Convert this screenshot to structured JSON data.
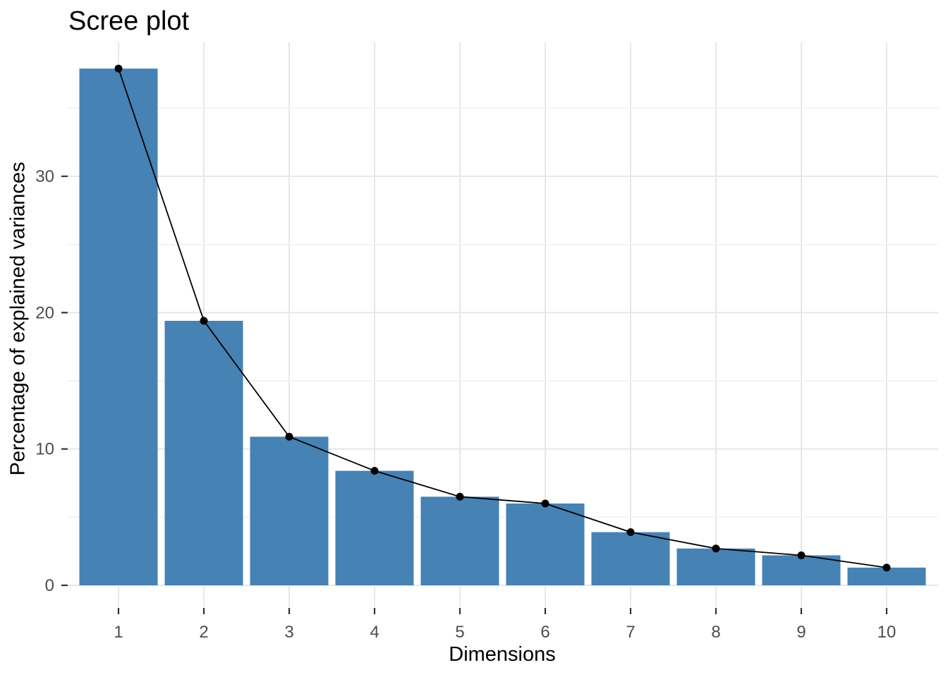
{
  "chart_data": {
    "type": "bar",
    "overlay": "line-with-points",
    "title": "Scree plot",
    "xlabel": "Dimensions",
    "ylabel": "Percentage of explained variances",
    "categories": [
      "1",
      "2",
      "3",
      "4",
      "5",
      "6",
      "7",
      "8",
      "9",
      "10"
    ],
    "values": [
      37.9,
      19.4,
      10.9,
      8.4,
      6.5,
      6.0,
      3.9,
      2.7,
      2.2,
      1.3
    ],
    "series": [
      {
        "name": "explained-variance-bars",
        "type": "bar",
        "values": [
          37.9,
          19.4,
          10.9,
          8.4,
          6.5,
          6.0,
          3.9,
          2.7,
          2.2,
          1.3
        ]
      },
      {
        "name": "explained-variance-line",
        "type": "line",
        "values": [
          37.9,
          19.4,
          10.9,
          8.4,
          6.5,
          6.0,
          3.9,
          2.7,
          2.2,
          1.3
        ]
      }
    ],
    "ylim": [
      0,
      39.8
    ],
    "yticks": [
      0,
      10,
      20,
      30
    ],
    "yticks_minor": [
      5,
      15,
      25,
      35
    ],
    "grid": true,
    "legend": false,
    "colors": {
      "bar_fill": "#4682B4",
      "line": "#000000",
      "point": "#000000",
      "grid_major": "#e7e7e7",
      "grid_minor": "#f1f1f1",
      "axis_tick": "#333333",
      "tick_label": "#4d4d4d",
      "axis_title": "#000000",
      "title": "#000000",
      "background": "#ffffff"
    }
  }
}
